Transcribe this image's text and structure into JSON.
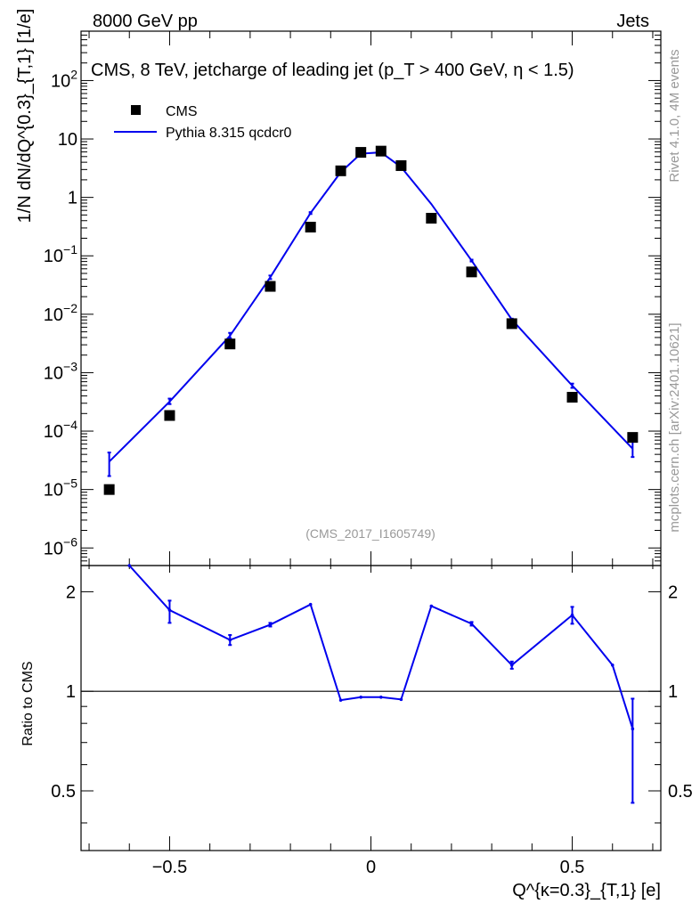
{
  "header": {
    "left": "8000 GeV pp",
    "right": "Jets"
  },
  "side": {
    "rivet": "Rivet 4.1.0,  4M events",
    "mcplots": "mcplots.cern.ch [arXiv:2401.10621]"
  },
  "chart_data": {
    "type": "scatter",
    "title": "CMS, 8 TeV, jetcharge of leading jet (p_T > 400 GeV, η < 1.5)",
    "analysis_tag": "(CMS_2017_I1605749)",
    "ylabel": "1/N dN/dQ^{0.3}_{T,1} [1/e]",
    "xlabel": "Q^{κ=0.3}_{T,1} [e]",
    "ratio_ylabel": "Ratio to CMS",
    "xlim": [
      -0.72,
      0.72
    ],
    "ylim_log": [
      5e-07,
      700
    ],
    "ratio_ylim": [
      0.33,
      2.4
    ],
    "x_ticks": [
      -0.5,
      0,
      0.5
    ],
    "x_tick_labels": [
      "−0.5",
      "0",
      "0.5"
    ],
    "ratio_ticks": [
      0.5,
      1,
      2
    ],
    "ratio_tick_labels": [
      "0.5",
      "1",
      "2"
    ],
    "legend": [
      "CMS",
      "Pythia 8.315 qcdcr0"
    ],
    "x": [
      -0.65,
      -0.5,
      -0.35,
      -0.25,
      -0.15,
      -0.075,
      -0.025,
      0.025,
      0.075,
      0.15,
      0.25,
      0.35,
      0.5,
      0.65
    ],
    "series": [
      {
        "name": "CMS",
        "style": "markers",
        "color": "#000000",
        "values": [
          1e-05,
          0.000185,
          0.0031,
          0.03,
          0.31,
          2.85,
          5.9,
          6.2,
          3.5,
          0.44,
          0.053,
          0.0069,
          0.00038,
          7.8e-05
        ]
      },
      {
        "name": "Pythia 8.315 qcdcr0",
        "style": "line",
        "color": "#0000ee",
        "values": [
          3e-05,
          0.00032,
          0.0043,
          0.043,
          0.54,
          2.7,
          5.6,
          5.9,
          3.3,
          0.77,
          0.083,
          0.0081,
          0.0006,
          5e-05
        ],
        "errors_log_hi": [
          4.3e-05,
          0.00036,
          0.0048,
          0.046,
          0.56,
          2.75,
          5.65,
          5.95,
          3.35,
          0.79,
          0.086,
          0.0084,
          0.00065,
          6.6e-05
        ],
        "errors_log_lo": [
          1.7e-05,
          0.00029,
          0.0039,
          0.04,
          0.52,
          2.65,
          5.55,
          5.85,
          3.25,
          0.75,
          0.08,
          0.0078,
          0.00055,
          3.6e-05
        ]
      }
    ],
    "ratio": {
      "x": [
        -0.6,
        -0.5,
        -0.35,
        -0.25,
        -0.15,
        -0.075,
        -0.025,
        0.025,
        0.075,
        0.15,
        0.25,
        0.35,
        0.5,
        0.6,
        0.65
      ],
      "values": [
        2.4,
        1.76,
        1.43,
        1.59,
        1.83,
        0.94,
        0.96,
        0.96,
        0.945,
        1.81,
        1.6,
        1.2,
        1.7,
        1.2,
        0.77
      ],
      "err_hi": [
        2.4,
        1.88,
        1.48,
        1.61,
        1.84,
        0.945,
        0.963,
        0.965,
        0.95,
        1.82,
        1.62,
        1.23,
        1.8,
        1.2,
        0.95
      ],
      "err_lo": [
        2.4,
        1.61,
        1.38,
        1.57,
        1.82,
        0.935,
        0.957,
        0.955,
        0.94,
        1.8,
        1.58,
        1.17,
        1.6,
        1.2,
        0.46
      ]
    },
    "y_ticks_main": [
      {
        "base": "10",
        "exp": "−6"
      },
      {
        "base": "10",
        "exp": "−5"
      },
      {
        "base": "10",
        "exp": "−4"
      },
      {
        "base": "10",
        "exp": "−3"
      },
      {
        "base": "10",
        "exp": "−2"
      },
      {
        "base": "10",
        "exp": "−1"
      },
      {
        "base": "1",
        "exp": ""
      },
      {
        "base": "10",
        "exp": ""
      },
      {
        "base": "10",
        "exp": "2"
      }
    ]
  }
}
